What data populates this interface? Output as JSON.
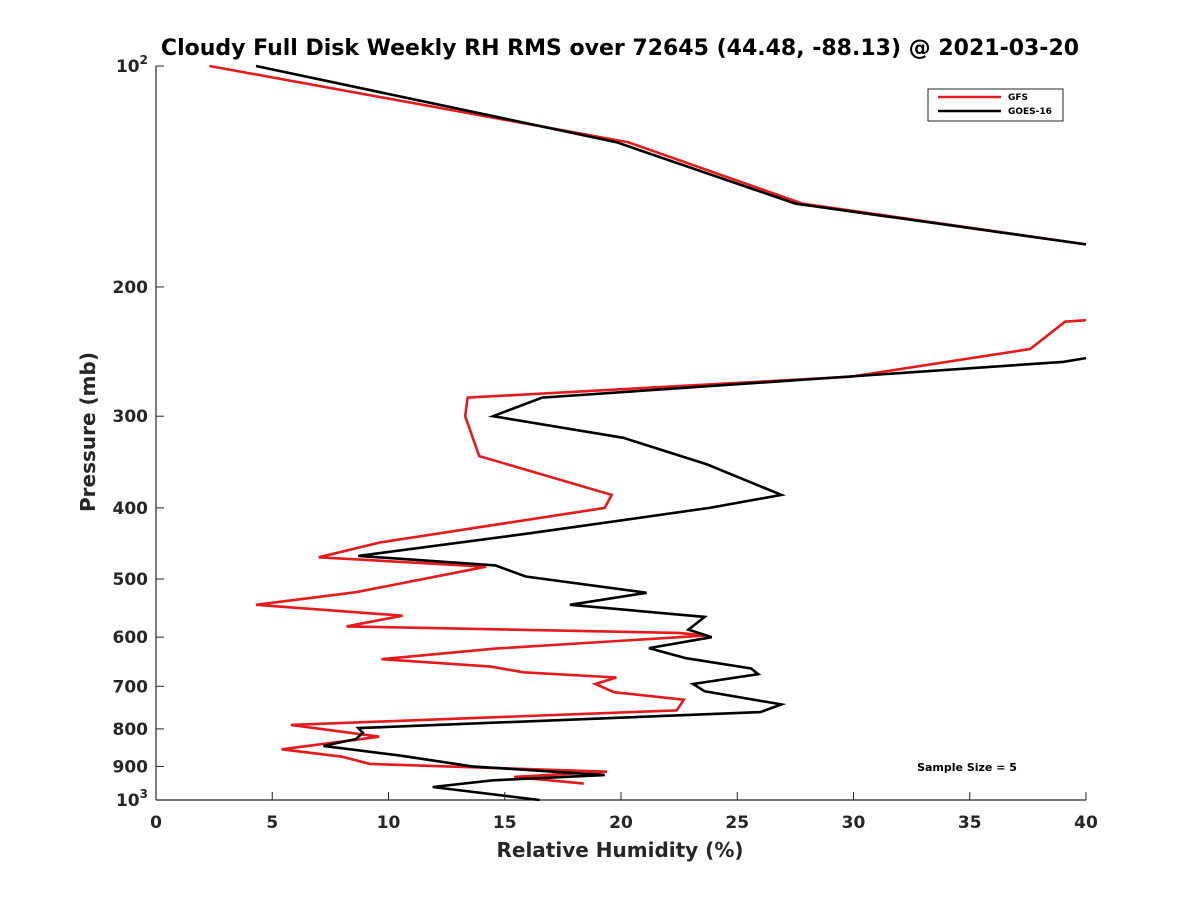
{
  "chart_data": {
    "type": "line",
    "title": "Cloudy Full Disk Weekly RH RMS over 72645 (44.48, -88.13) @ 2021-03-20",
    "xlabel": "Relative Humidity (%)",
    "ylabel": "Pressure (mb)",
    "xlim": [
      0,
      40
    ],
    "ylim": [
      100,
      1000
    ],
    "y_scale": "log",
    "y_reversed": true,
    "x_ticks": [
      "0",
      "5",
      "10",
      "15",
      "20",
      "25",
      "30",
      "35",
      "40"
    ],
    "y_ticks": [
      {
        "value": 100,
        "base": "10",
        "exp": "2"
      },
      {
        "value": 200,
        "label": "200"
      },
      {
        "value": 300,
        "label": "300"
      },
      {
        "value": 400,
        "label": "400"
      },
      {
        "value": 500,
        "label": "500"
      },
      {
        "value": 600,
        "label": "600"
      },
      {
        "value": 700,
        "label": "700"
      },
      {
        "value": 800,
        "label": "800"
      },
      {
        "value": 900,
        "label": "900"
      },
      {
        "value": 1000,
        "base": "10",
        "exp": "3"
      }
    ],
    "grid": false,
    "legend_position": "top-right",
    "annotation": "Sample Size = 5",
    "series": [
      {
        "name": "GFS",
        "color": "#e41a1c",
        "x": [
          2.3,
          20.3,
          27.8,
          40.0,
          null,
          40.0,
          39.1,
          37.6,
          29.9,
          13.4,
          13.3,
          13.9,
          19.6,
          19.3,
          9.6,
          7.0,
          14.2,
          8.6,
          4.3,
          10.6,
          8.2,
          22.5,
          23.6,
          14.6,
          9.7,
          14.4,
          15.8,
          19.8,
          18.9,
          19.7,
          22.7,
          22.4,
          5.8,
          9.6,
          5.4,
          8.0,
          9.2,
          19.4,
          15.4,
          18.4
        ],
        "y": [
          100,
          127,
          154,
          175,
          null,
          222,
          223,
          243,
          265,
          283,
          300,
          340,
          384,
          400,
          446,
          467,
          481,
          521,
          542,
          561,
          580,
          592,
          597,
          622,
          643,
          658,
          670,
          681,
          695,
          713,
          730,
          755,
          790,
          820,
          853,
          873,
          893,
          915,
          930,
          950
        ]
      },
      {
        "name": "GOES-16",
        "color": "#000000",
        "x": [
          4.3,
          19.8,
          27.5,
          40.0,
          null,
          40.0,
          39.0,
          16.6,
          14.5,
          20.1,
          23.7,
          26.9,
          23.8,
          16.1,
          8.7,
          14.6,
          15.9,
          21.1,
          17.8,
          23.6,
          22.9,
          23.9,
          21.2,
          22.8,
          25.6,
          25.9,
          23.1,
          23.6,
          26.9,
          26.0,
          8.7,
          8.9,
          8.6,
          7.2,
          10.5,
          13.6,
          19.3,
          14.5,
          11.9,
          16.5
        ],
        "y": [
          100,
          127,
          154,
          175,
          null,
          250,
          253,
          283,
          300,
          321,
          349,
          384,
          400,
          433,
          465,
          479,
          496,
          522,
          542,
          563,
          586,
          600,
          621,
          641,
          662,
          674,
          695,
          711,
          741,
          759,
          798,
          810,
          826,
          844,
          870,
          900,
          925,
          940,
          960,
          1000
        ]
      }
    ]
  }
}
